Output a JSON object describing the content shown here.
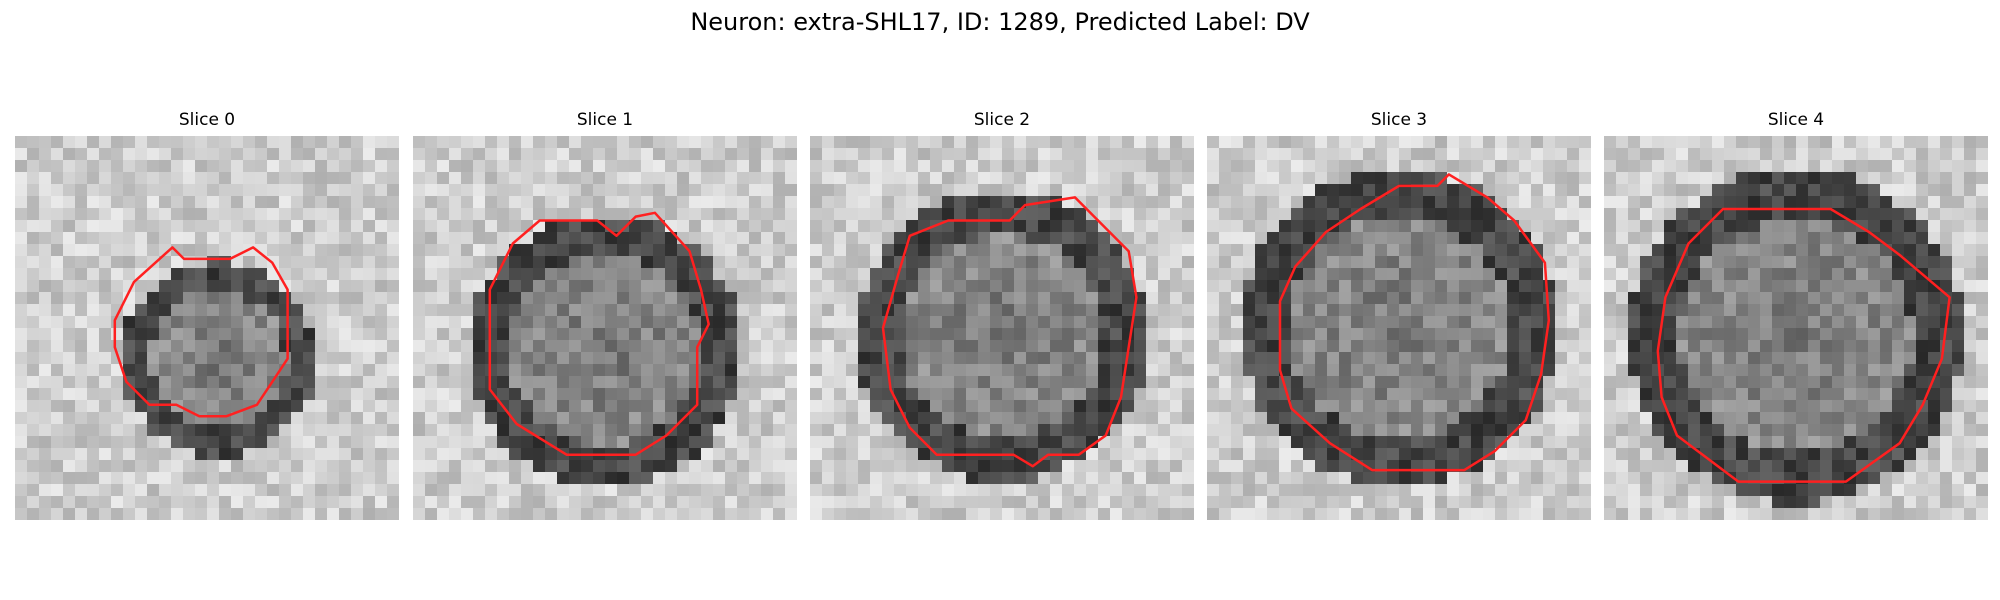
{
  "figure": {
    "title": "Neuron: extra-SHL17, ID: 1289, Predicted Label: DV"
  },
  "panels": [
    {
      "title": "Slice 0",
      "seed": 11,
      "core": [
        0.53,
        0.58
      ],
      "radius": 0.22
    },
    {
      "title": "Slice 1",
      "seed": 23,
      "core": [
        0.5,
        0.56
      ],
      "radius": 0.31
    },
    {
      "title": "Slice 2",
      "seed": 37,
      "core": [
        0.5,
        0.52
      ],
      "radius": 0.33
    },
    {
      "title": "Slice 3",
      "seed": 41,
      "core": [
        0.5,
        0.5
      ],
      "radius": 0.36
    },
    {
      "title": "Slice 4",
      "seed": 59,
      "core": [
        0.5,
        0.52
      ],
      "radius": 0.38
    }
  ],
  "colors": {
    "contour": "#ff2020",
    "background": "#ffffff"
  }
}
